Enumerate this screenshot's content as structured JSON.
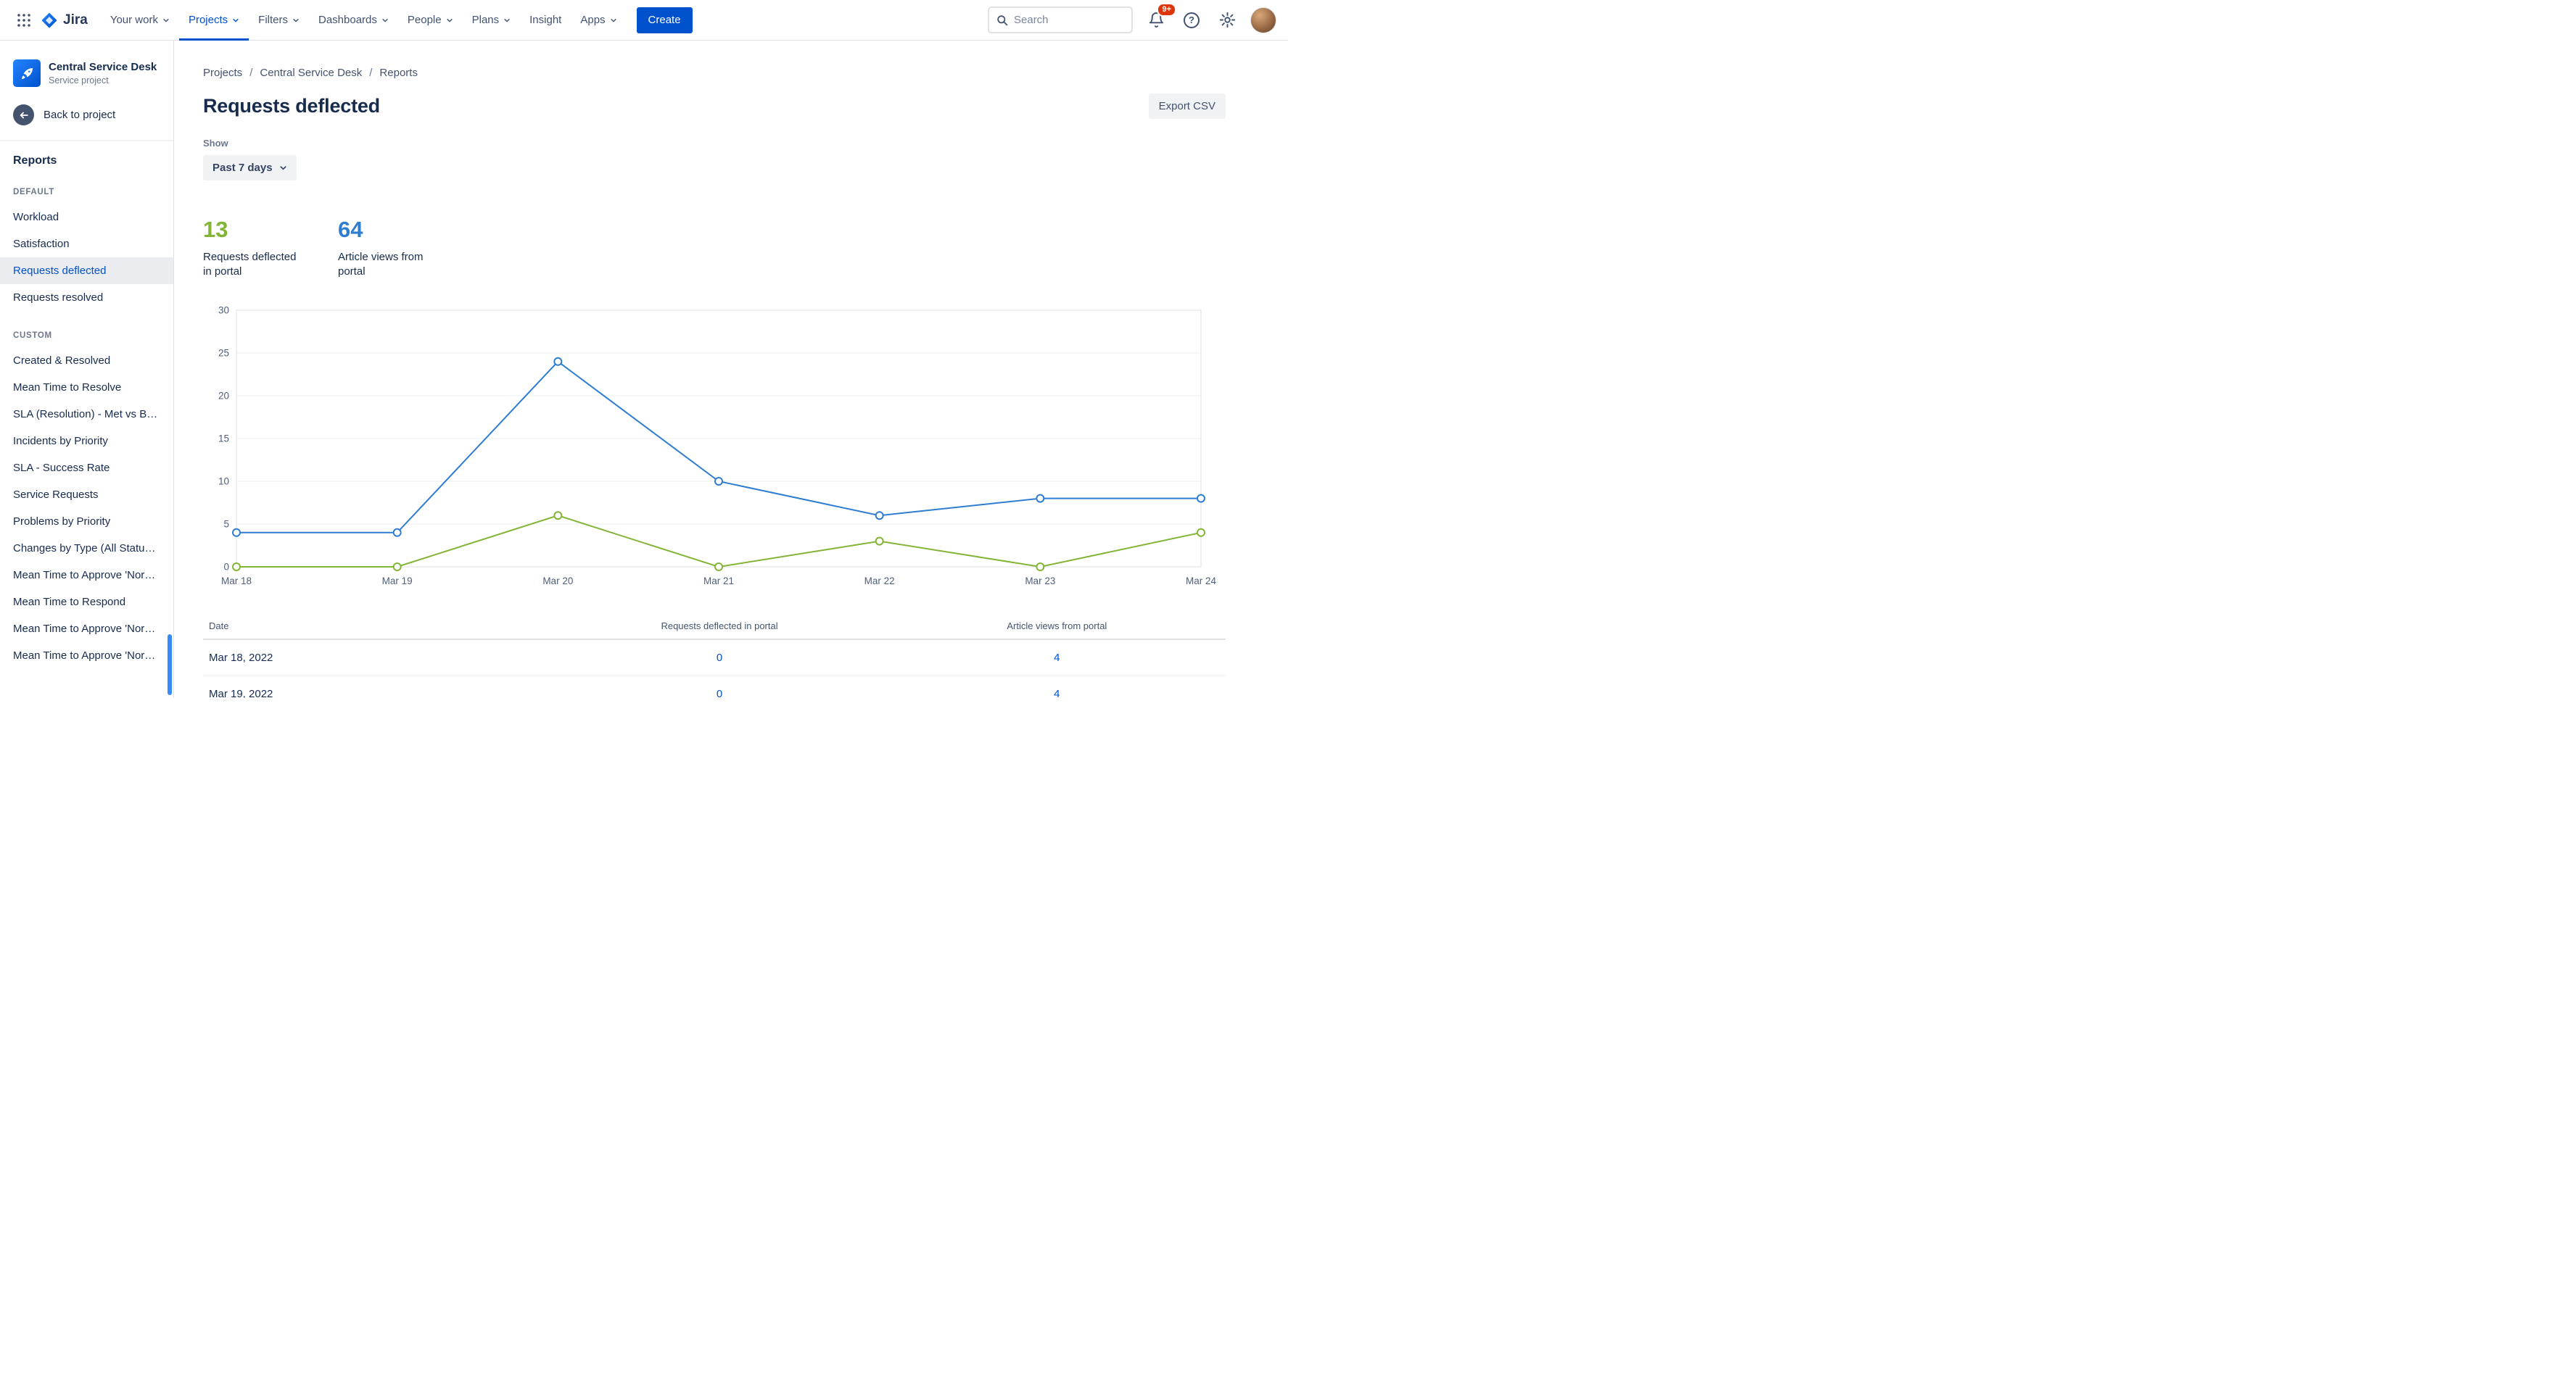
{
  "colors": {
    "accent": "#0052CC",
    "chart_blue": "#2E7DD1",
    "chart_green": "#82B536",
    "link": "#0052CC",
    "badge_red": "#DE350B"
  },
  "topnav": {
    "logo_text": "Jira",
    "items": [
      {
        "label": "Your work",
        "chevron": true,
        "active": false
      },
      {
        "label": "Projects",
        "chevron": true,
        "active": true
      },
      {
        "label": "Filters",
        "chevron": true,
        "active": false
      },
      {
        "label": "Dashboards",
        "chevron": true,
        "active": false
      },
      {
        "label": "People",
        "chevron": true,
        "active": false
      },
      {
        "label": "Plans",
        "chevron": true,
        "active": false
      },
      {
        "label": "Insight",
        "chevron": false,
        "active": false
      },
      {
        "label": "Apps",
        "chevron": true,
        "active": false
      }
    ],
    "create_label": "Create",
    "search_placeholder": "Search",
    "notification_badge": "9+"
  },
  "sidebar": {
    "project_name": "Central Service Desk",
    "project_type": "Service project",
    "back_label": "Back to project",
    "section_heading": "Reports",
    "groups": [
      {
        "title": "DEFAULT",
        "selected": "Requests deflected",
        "items": [
          "Workload",
          "Satisfaction",
          "Requests deflected",
          "Requests resolved"
        ]
      },
      {
        "title": "CUSTOM",
        "selected": "",
        "items": [
          "Created & Resolved",
          "Mean Time to Resolve",
          "SLA (Resolution) - Met vs Bre…",
          "Incidents by Priority",
          "SLA - Success Rate",
          "Service Requests",
          "Problems by Priority",
          "Changes by Type (All Statuses)",
          "Mean Time to Approve 'Norm…",
          "Mean Time to Respond",
          "Mean Time to Approve 'Norm…",
          "Mean Time to Approve 'Norm…"
        ]
      }
    ]
  },
  "main": {
    "breadcrumbs": [
      "Projects",
      "Central Service Desk",
      "Reports"
    ],
    "title": "Requests deflected",
    "export_label": "Export CSV",
    "show_label": "Show",
    "period_value": "Past 7 days",
    "stats": [
      {
        "value": "13",
        "label": "Requests deflected in portal",
        "color": "green"
      },
      {
        "value": "64",
        "label": "Article views from portal",
        "color": "blue"
      }
    ]
  },
  "chart_data": {
    "type": "line",
    "title": "",
    "xlabel": "",
    "ylabel": "",
    "x": [
      "Mar 18",
      "Mar 19",
      "Mar 20",
      "Mar 21",
      "Mar 22",
      "Mar 23",
      "Mar 24"
    ],
    "series": [
      {
        "name": "Article views from portal",
        "color": "#2E7DD1",
        "values": [
          4,
          4,
          24,
          10,
          6,
          8,
          8
        ]
      },
      {
        "name": "Requests deflected in portal",
        "color": "#82B536",
        "values": [
          0,
          0,
          6,
          0,
          3,
          0,
          4
        ]
      }
    ],
    "ylim": [
      0,
      30
    ],
    "yticks": [
      0,
      5,
      10,
      15,
      20,
      25,
      30
    ],
    "grid": true,
    "legend": "none"
  },
  "table": {
    "columns": [
      "Date",
      "Requests deflected in portal",
      "Article views from portal"
    ],
    "rows": [
      {
        "date": "Mar 18, 2022",
        "deflected": "0",
        "views": "4"
      },
      {
        "date": "Mar 19, 2022",
        "deflected": "0",
        "views": "4"
      }
    ]
  }
}
